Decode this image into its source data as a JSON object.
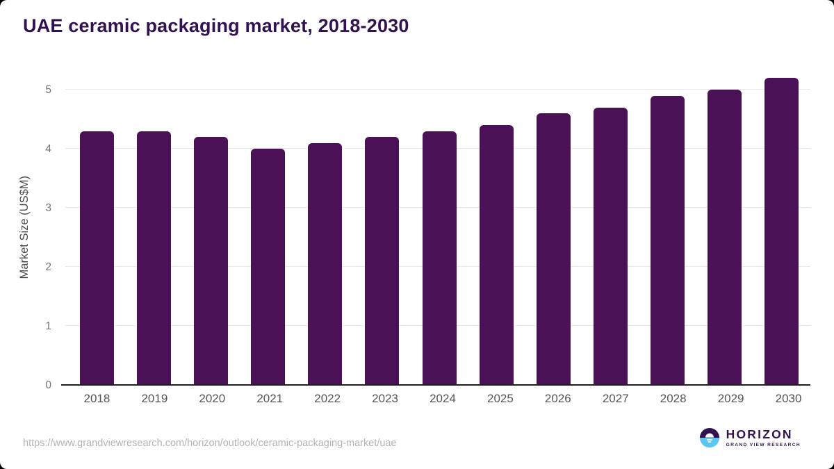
{
  "page": {
    "title": "UAE ceramic packaging market, 2018-2030"
  },
  "chart_data": {
    "type": "bar",
    "title": "UAE ceramic packaging market, 2018-2030",
    "categories": [
      "2018",
      "2019",
      "2020",
      "2021",
      "2022",
      "2023",
      "2024",
      "2025",
      "2026",
      "2027",
      "2028",
      "2029",
      "2030"
    ],
    "values": [
      4.3,
      4.3,
      4.2,
      4.0,
      4.1,
      4.2,
      4.3,
      4.4,
      4.6,
      4.7,
      4.9,
      5.0,
      5.2
    ],
    "xlabel": "",
    "ylabel": "Market Size (US$M)",
    "ylim": [
      0,
      5.34
    ],
    "y_ticks": [
      0,
      1,
      2,
      3,
      4,
      5
    ],
    "grid": "horizontal-only",
    "legend_position": "none",
    "bar_color": "#4A1157"
  },
  "footer": {
    "source_url": "https://www.grandviewresearch.com/horizon/outlook/ceramic-packaging-market/uae",
    "logo": {
      "brand": "HORIZON",
      "sub_brand": "GRAND VIEW RESEARCH",
      "icon": "horizon-sun-icon"
    }
  },
  "colors": {
    "title_text": "#321251",
    "bar": "#4A1157",
    "logo_blue": "#5BC6F0",
    "logo_purple": "#321251",
    "gridline": "#e8e8e8",
    "axis_line": "#1f1f1f",
    "y_tick_label": "#757575",
    "x_tick_label": "#555555",
    "url_text": "#b3b3b3"
  }
}
